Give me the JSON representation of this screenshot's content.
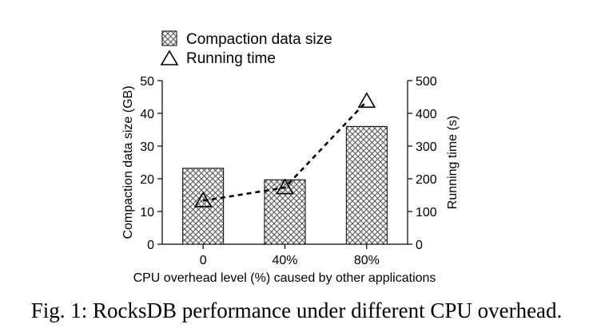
{
  "chart_data": {
    "type": "bar",
    "categories": [
      "0",
      "40%",
      "80%"
    ],
    "series": [
      {
        "name": "Compaction data size",
        "kind": "bar",
        "axis": "left",
        "values": [
          23.2,
          19.7,
          36.0
        ]
      },
      {
        "name": "Running time",
        "kind": "line",
        "axis": "right",
        "marker": "triangle",
        "line_style": "dashed",
        "values": [
          133,
          173,
          437
        ]
      }
    ],
    "xlabel": "CPU overhead level (%) caused by other applications",
    "ylabel": "Compaction data size (GB)",
    "y2label": "Running time (s)",
    "ylim": [
      0,
      50
    ],
    "y2lim": [
      0,
      500
    ],
    "yticks": [
      0,
      10,
      20,
      30,
      40,
      50
    ],
    "y2ticks": [
      0,
      100,
      200,
      300,
      400,
      500
    ],
    "legend_position": "top-left",
    "grid": false,
    "bar_fill": "crosshatch",
    "colors": {
      "ink": "#000000",
      "hatch": "#555555",
      "background": "#ffffff"
    }
  },
  "caption": "Fig. 1: RocksDB performance under different CPU overhead."
}
